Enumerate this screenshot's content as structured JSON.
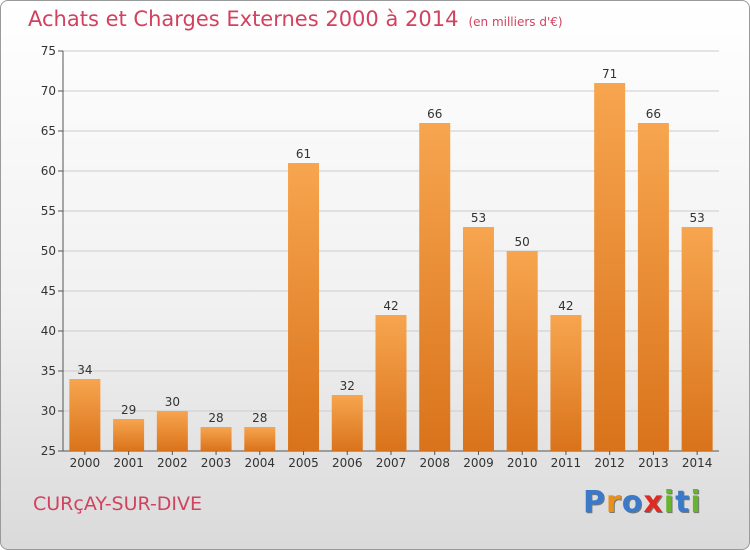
{
  "title": "Achats et Charges Externes 2000 à 2014",
  "unit": "(en milliers d'€)",
  "town": "CURçAY-SUR-DIVE",
  "logo": "Proxiti",
  "colors": {
    "bar_top": "#f7a54f",
    "bar_bottom": "#d9731b",
    "title": "#d2425f",
    "grid": "#cccccc",
    "logo": [
      "#3a7ac9",
      "#e8901e",
      "#3a7ac9",
      "#e02b24",
      "#69b42e",
      "#3a7ac9",
      "#69b42e"
    ]
  },
  "chart_data": {
    "type": "bar",
    "title": "Achats et Charges Externes 2000 à 2014",
    "categories": [
      "2000",
      "2001",
      "2002",
      "2003",
      "2004",
      "2005",
      "2006",
      "2007",
      "2008",
      "2009",
      "2010",
      "2011",
      "2012",
      "2013",
      "2014"
    ],
    "values": [
      34,
      29,
      30,
      28,
      28,
      61,
      32,
      42,
      66,
      53,
      50,
      42,
      71,
      66,
      53
    ],
    "ylim": [
      25,
      75
    ],
    "yticks": [
      25,
      30,
      35,
      40,
      45,
      50,
      55,
      60,
      65,
      70,
      75
    ],
    "grid": true,
    "xlabel": "",
    "ylabel": ""
  }
}
